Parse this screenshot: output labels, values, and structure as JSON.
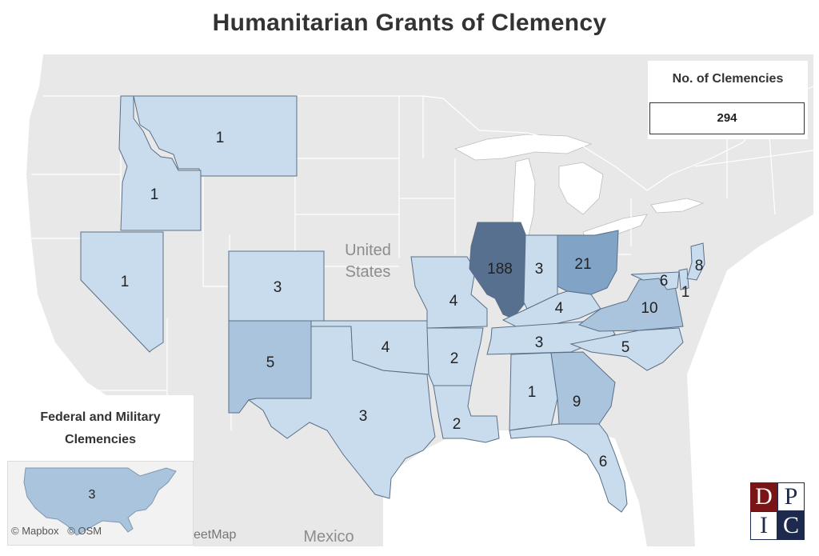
{
  "title": "Humanitarian Grants of Clemency",
  "legend": {
    "title": "No. of Clemencies",
    "value": "294"
  },
  "inset": {
    "title_line1": "Federal and Military",
    "title_line2": "Clemencies",
    "value": "3"
  },
  "attribution": {
    "mapbox": "© Mapbox",
    "osm": "© OSM",
    "streetmap": "eetMap"
  },
  "base_labels": {
    "country_line1": "United",
    "country_line2": "States",
    "mexico": "Mexico"
  },
  "colors": {
    "land": "#e8e8e8",
    "water": "#ffffff",
    "low": "#c9dced",
    "mid": "#a9c4dc",
    "high": "#80a3c6",
    "max": "#58708f"
  },
  "map_data": [
    {
      "state": "Montana",
      "clemencies": "1"
    },
    {
      "state": "Idaho",
      "clemencies": "1"
    },
    {
      "state": "Nevada",
      "clemencies": "1"
    },
    {
      "state": "Colorado",
      "clemencies": "3"
    },
    {
      "state": "New Mexico",
      "clemencies": "5"
    },
    {
      "state": "Texas",
      "clemencies": "3"
    },
    {
      "state": "Oklahoma",
      "clemencies": "4"
    },
    {
      "state": "Missouri",
      "clemencies": "4"
    },
    {
      "state": "Arkansas",
      "clemencies": "2"
    },
    {
      "state": "Louisiana",
      "clemencies": "2"
    },
    {
      "state": "Illinois",
      "clemencies": "188"
    },
    {
      "state": "Indiana",
      "clemencies": "3"
    },
    {
      "state": "Ohio",
      "clemencies": "21"
    },
    {
      "state": "Kentucky",
      "clemencies": "4"
    },
    {
      "state": "Tennessee",
      "clemencies": "3"
    },
    {
      "state": "Alabama",
      "clemencies": "1"
    },
    {
      "state": "Georgia",
      "clemencies": "9"
    },
    {
      "state": "Florida",
      "clemencies": "6"
    },
    {
      "state": "North Carolina",
      "clemencies": "5"
    },
    {
      "state": "Virginia",
      "clemencies": "10"
    },
    {
      "state": "Maryland",
      "clemencies": "6"
    },
    {
      "state": "Delaware",
      "clemencies": "1"
    },
    {
      "state": "New Jersey",
      "clemencies": "8"
    }
  ],
  "logo": {
    "letters": [
      "D",
      "P",
      "I",
      "C"
    ]
  }
}
